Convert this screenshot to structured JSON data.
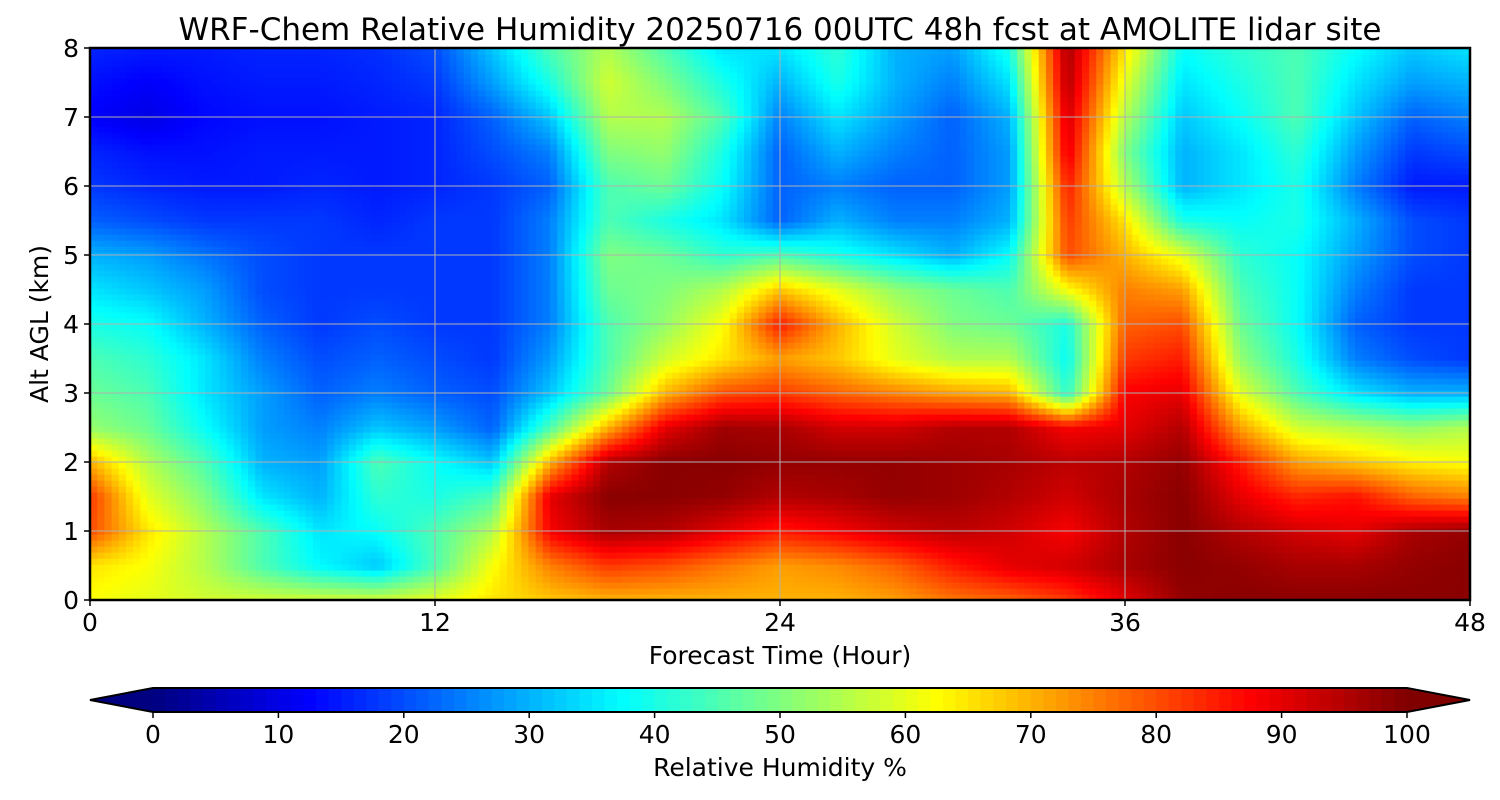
{
  "chart_data": {
    "type": "heatmap",
    "title": "WRF-Chem Relative Humidity 20250716 00UTC 48h fcst at AMOLITE lidar site",
    "xlabel": "Forecast Time (Hour)",
    "ylabel": "Alt AGL (km)",
    "xlim": [
      0,
      48
    ],
    "ylim": [
      0,
      8
    ],
    "x_ticks": [
      "0",
      "12",
      "24",
      "36",
      "48"
    ],
    "y_ticks": [
      "0",
      "1",
      "2",
      "3",
      "4",
      "5",
      "6",
      "7",
      "8"
    ],
    "grid": true,
    "colormap": "jet",
    "colorbar": {
      "label": "Relative Humidity %",
      "range": [
        0,
        100
      ],
      "extend": "both",
      "ticks": [
        "0",
        "10",
        "20",
        "30",
        "40",
        "50",
        "60",
        "70",
        "80",
        "90",
        "100"
      ]
    },
    "x": [
      0,
      2,
      4,
      6,
      8,
      10,
      12,
      14,
      16,
      18,
      20,
      22,
      24,
      26,
      28,
      30,
      32,
      34,
      36,
      38,
      40,
      42,
      44,
      46,
      48
    ],
    "y": [
      0,
      0.5,
      1,
      1.5,
      2,
      2.5,
      3,
      3.5,
      4,
      4.5,
      5,
      5.5,
      6,
      6.5,
      7,
      7.5,
      8
    ],
    "z": [
      [
        62,
        60,
        58,
        58,
        58,
        58,
        60,
        65,
        68,
        70,
        70,
        70,
        70,
        70,
        72,
        76,
        78,
        82,
        90,
        98,
        99,
        99,
        99,
        99,
        99
      ],
      [
        65,
        62,
        55,
        45,
        37,
        32,
        45,
        62,
        75,
        82,
        80,
        76,
        72,
        74,
        78,
        85,
        90,
        92,
        96,
        99,
        98,
        96,
        96,
        98,
        99
      ],
      [
        80,
        65,
        55,
        45,
        35,
        38,
        45,
        55,
        88,
        96,
        95,
        90,
        85,
        88,
        92,
        94,
        92,
        88,
        95,
        99,
        95,
        92,
        90,
        96,
        98
      ],
      [
        82,
        60,
        50,
        35,
        30,
        42,
        40,
        45,
        90,
        99,
        99,
        98,
        95,
        96,
        98,
        97,
        95,
        92,
        96,
        99,
        90,
        84,
        86,
        78,
        75
      ],
      [
        70,
        55,
        45,
        30,
        28,
        45,
        38,
        32,
        70,
        95,
        99,
        99,
        98,
        98,
        98,
        97,
        96,
        94,
        95,
        98,
        85,
        72,
        68,
        64,
        62
      ],
      [
        52,
        48,
        38,
        28,
        25,
        32,
        28,
        22,
        45,
        70,
        90,
        97,
        96,
        92,
        92,
        95,
        95,
        88,
        90,
        95,
        72,
        58,
        55,
        52,
        55
      ],
      [
        48,
        45,
        35,
        28,
        22,
        25,
        22,
        20,
        32,
        48,
        70,
        80,
        82,
        78,
        75,
        72,
        70,
        42,
        88,
        90,
        60,
        45,
        35,
        30,
        30
      ],
      [
        45,
        42,
        35,
        25,
        20,
        22,
        20,
        18,
        28,
        45,
        58,
        65,
        72,
        68,
        60,
        55,
        55,
        38,
        82,
        85,
        52,
        40,
        25,
        20,
        18
      ],
      [
        40,
        38,
        30,
        22,
        18,
        20,
        18,
        18,
        25,
        45,
        52,
        62,
        85,
        70,
        58,
        50,
        48,
        40,
        78,
        80,
        48,
        38,
        22,
        18,
        18
      ],
      [
        35,
        32,
        28,
        20,
        18,
        18,
        18,
        18,
        25,
        48,
        50,
        55,
        68,
        60,
        52,
        48,
        45,
        62,
        75,
        72,
        45,
        38,
        25,
        18,
        18
      ],
      [
        30,
        28,
        24,
        20,
        18,
        18,
        18,
        18,
        25,
        50,
        48,
        42,
        45,
        40,
        35,
        30,
        38,
        80,
        70,
        60,
        42,
        38,
        28,
        20,
        18
      ],
      [
        22,
        20,
        18,
        18,
        18,
        16,
        18,
        18,
        25,
        45,
        40,
        35,
        22,
        30,
        25,
        25,
        30,
        82,
        65,
        40,
        38,
        40,
        30,
        20,
        18
      ],
      [
        18,
        16,
        15,
        15,
        16,
        15,
        16,
        18,
        22,
        45,
        48,
        38,
        22,
        25,
        22,
        22,
        28,
        85,
        55,
        30,
        35,
        40,
        25,
        15,
        15
      ],
      [
        16,
        14,
        14,
        15,
        15,
        15,
        16,
        20,
        25,
        50,
        52,
        40,
        22,
        30,
        25,
        22,
        28,
        90,
        50,
        30,
        35,
        42,
        28,
        18,
        20
      ],
      [
        12,
        10,
        13,
        14,
        14,
        15,
        16,
        22,
        32,
        55,
        55,
        45,
        25,
        35,
        28,
        22,
        30,
        92,
        55,
        32,
        38,
        45,
        32,
        22,
        25
      ],
      [
        14,
        12,
        14,
        15,
        15,
        16,
        18,
        28,
        40,
        58,
        50,
        40,
        30,
        40,
        30,
        25,
        35,
        95,
        60,
        35,
        40,
        45,
        35,
        28,
        30
      ],
      [
        16,
        15,
        15,
        16,
        16,
        17,
        20,
        32,
        45,
        55,
        45,
        35,
        35,
        42,
        30,
        28,
        40,
        96,
        65,
        38,
        42,
        45,
        38,
        32,
        35
      ]
    ]
  }
}
